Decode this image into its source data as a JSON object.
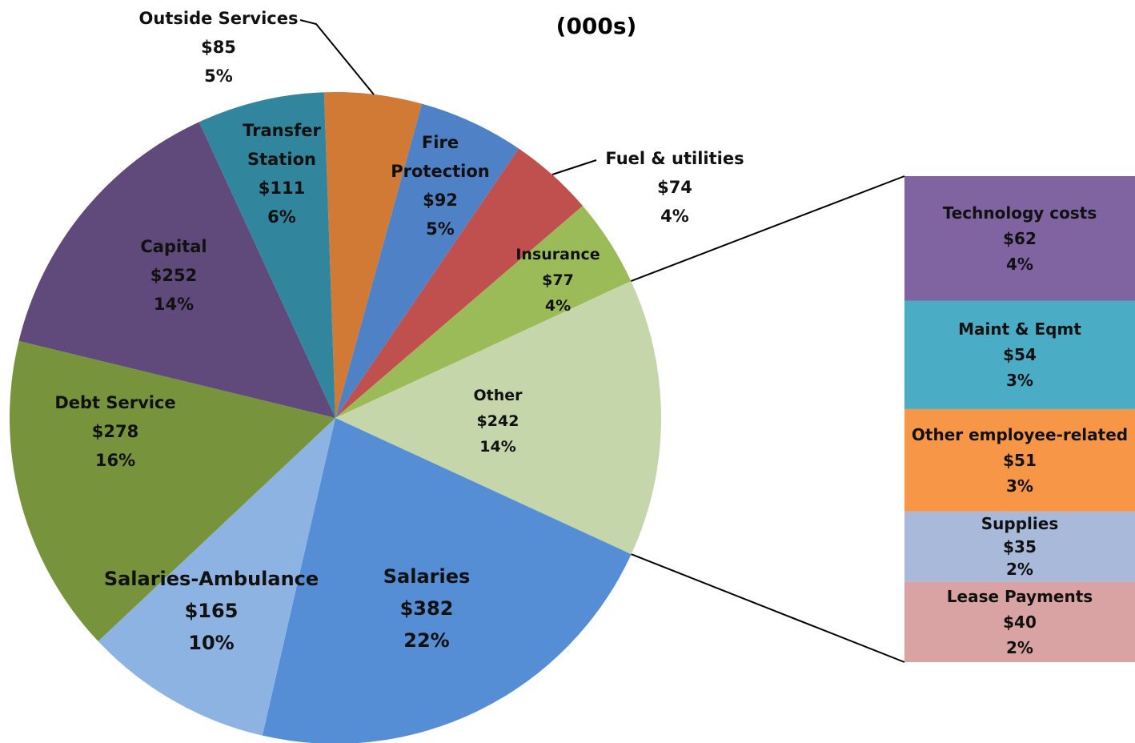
{
  "chart_data": {
    "type": "pie",
    "subtitle": "(000s)",
    "categories": [
      "Outside Services",
      "Fire Protection",
      "Fuel & utilities",
      "Insurance",
      "Other",
      "Salaries",
      "Salaries-Ambulance",
      "Debt Service",
      "Capital",
      "Transfer Station"
    ],
    "values": [
      85,
      92,
      74,
      77,
      242,
      382,
      165,
      278,
      252,
      111
    ],
    "value_labels": [
      "$85",
      "$92",
      "$74",
      "$77",
      "$242",
      "$382",
      "$165",
      "$278",
      "$252",
      "$111"
    ],
    "percent_labels": [
      "5%",
      "5%",
      "4%",
      "4%",
      "14%",
      "22%",
      "10%",
      "16%",
      "14%",
      "6%"
    ],
    "colors": [
      "#D07A35",
      "#4F81C7",
      "#C0504D",
      "#9BBB59",
      "#C4D6AA",
      "#558ED5",
      "#8DB3E2",
      "#77933C",
      "#604A7B",
      "#31859C"
    ],
    "breakdown": {
      "type": "bar",
      "categories": [
        "Technology costs",
        "Maint & Eqmt",
        "Other employee-related",
        "Supplies",
        "Lease Payments"
      ],
      "values": [
        62,
        54,
        51,
        35,
        40
      ],
      "value_labels": [
        "$62",
        "$54",
        "$51",
        "$35",
        "$40"
      ],
      "percent_labels": [
        "4%",
        "3%",
        "3%",
        "2%",
        "2%"
      ],
      "colors": [
        "#8064A2",
        "#4BACC6",
        "#F79646",
        "#A8B9D9",
        "#D9A3A3"
      ]
    }
  }
}
